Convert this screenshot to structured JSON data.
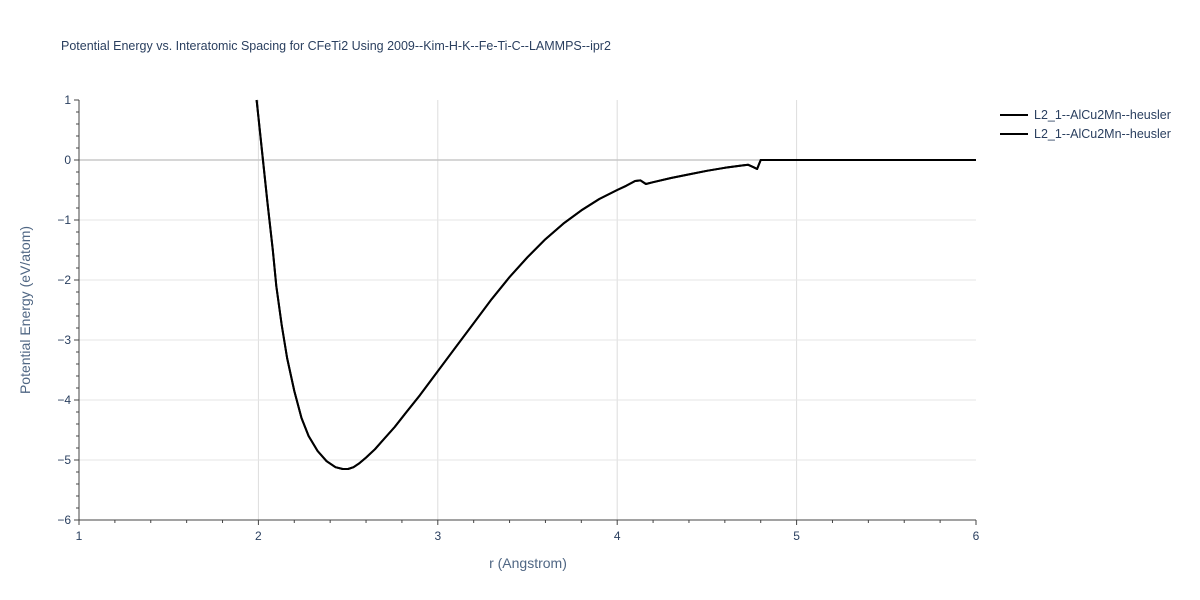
{
  "chart_data": {
    "type": "line",
    "title": "Potential Energy vs. Interatomic Spacing for CFeTi2 Using 2009--Kim-H-K--Fe-Ti-C--LAMMPS--ipr2",
    "xlabel": "r (Angstrom)",
    "ylabel": "Potential Energy (eV/atom)",
    "xlim": [
      1,
      6
    ],
    "ylim": [
      -6,
      1
    ],
    "x_ticks": [
      "1",
      "2",
      "3",
      "4",
      "5",
      "6"
    ],
    "y_ticks": [
      "1",
      "0",
      "−1",
      "−2",
      "−3",
      "−4",
      "−5",
      "−6"
    ],
    "grid": true,
    "legend_position": "top-right",
    "series": [
      {
        "name": "L2_1--AlCu2Mn--heusler",
        "color": "#000000",
        "x": [
          1.99,
          2.0,
          2.02,
          2.05,
          2.08,
          2.1,
          2.13,
          2.16,
          2.2,
          2.24,
          2.28,
          2.33,
          2.38,
          2.43,
          2.47,
          2.5,
          2.53,
          2.56,
          2.6,
          2.65,
          2.7,
          2.76,
          2.82,
          2.9,
          3.0,
          3.1,
          3.2,
          3.3,
          3.4,
          3.5,
          3.6,
          3.7,
          3.8,
          3.9,
          4.0,
          4.05,
          4.1,
          4.13,
          4.16,
          4.2,
          4.3,
          4.4,
          4.5,
          4.6,
          4.7,
          4.73,
          4.76,
          4.78,
          4.8,
          4.85,
          5.0,
          5.5,
          6.0
        ],
        "y": [
          1.0,
          0.72,
          0.15,
          -0.7,
          -1.5,
          -2.1,
          -2.75,
          -3.3,
          -3.85,
          -4.3,
          -4.6,
          -4.85,
          -5.02,
          -5.12,
          -5.15,
          -5.15,
          -5.12,
          -5.06,
          -4.96,
          -4.82,
          -4.65,
          -4.45,
          -4.22,
          -3.92,
          -3.52,
          -3.12,
          -2.72,
          -2.32,
          -1.95,
          -1.62,
          -1.32,
          -1.06,
          -0.84,
          -0.65,
          -0.5,
          -0.43,
          -0.35,
          -0.34,
          -0.4,
          -0.37,
          -0.3,
          -0.24,
          -0.18,
          -0.13,
          -0.09,
          -0.08,
          -0.12,
          -0.15,
          0.0,
          0.0,
          0.0,
          0.0,
          0.0
        ]
      },
      {
        "name": "L2_1--AlCu2Mn--heusler",
        "color": "#000000",
        "x": [
          1.99,
          2.0,
          2.02,
          2.05,
          2.08,
          2.1,
          2.13,
          2.16,
          2.2,
          2.24,
          2.28,
          2.33,
          2.38,
          2.43,
          2.47,
          2.5,
          2.53,
          2.56,
          2.6,
          2.65,
          2.7,
          2.76,
          2.82,
          2.9,
          3.0,
          3.1,
          3.2,
          3.3,
          3.4,
          3.5,
          3.6,
          3.7,
          3.8,
          3.9,
          4.0,
          4.05,
          4.1,
          4.13,
          4.16,
          4.2,
          4.3,
          4.4,
          4.5,
          4.6,
          4.7,
          4.73,
          4.76,
          4.78,
          4.8,
          4.85,
          5.0,
          5.5,
          6.0
        ],
        "y": [
          1.0,
          0.72,
          0.15,
          -0.7,
          -1.5,
          -2.1,
          -2.75,
          -3.3,
          -3.85,
          -4.3,
          -4.6,
          -4.85,
          -5.02,
          -5.12,
          -5.15,
          -5.15,
          -5.12,
          -5.06,
          -4.96,
          -4.82,
          -4.65,
          -4.45,
          -4.22,
          -3.92,
          -3.52,
          -3.12,
          -2.72,
          -2.32,
          -1.95,
          -1.62,
          -1.32,
          -1.06,
          -0.84,
          -0.65,
          -0.5,
          -0.43,
          -0.35,
          -0.34,
          -0.4,
          -0.37,
          -0.3,
          -0.24,
          -0.18,
          -0.13,
          -0.09,
          -0.08,
          -0.12,
          -0.15,
          0.0,
          0.0,
          0.0,
          0.0,
          0.0
        ]
      }
    ]
  }
}
